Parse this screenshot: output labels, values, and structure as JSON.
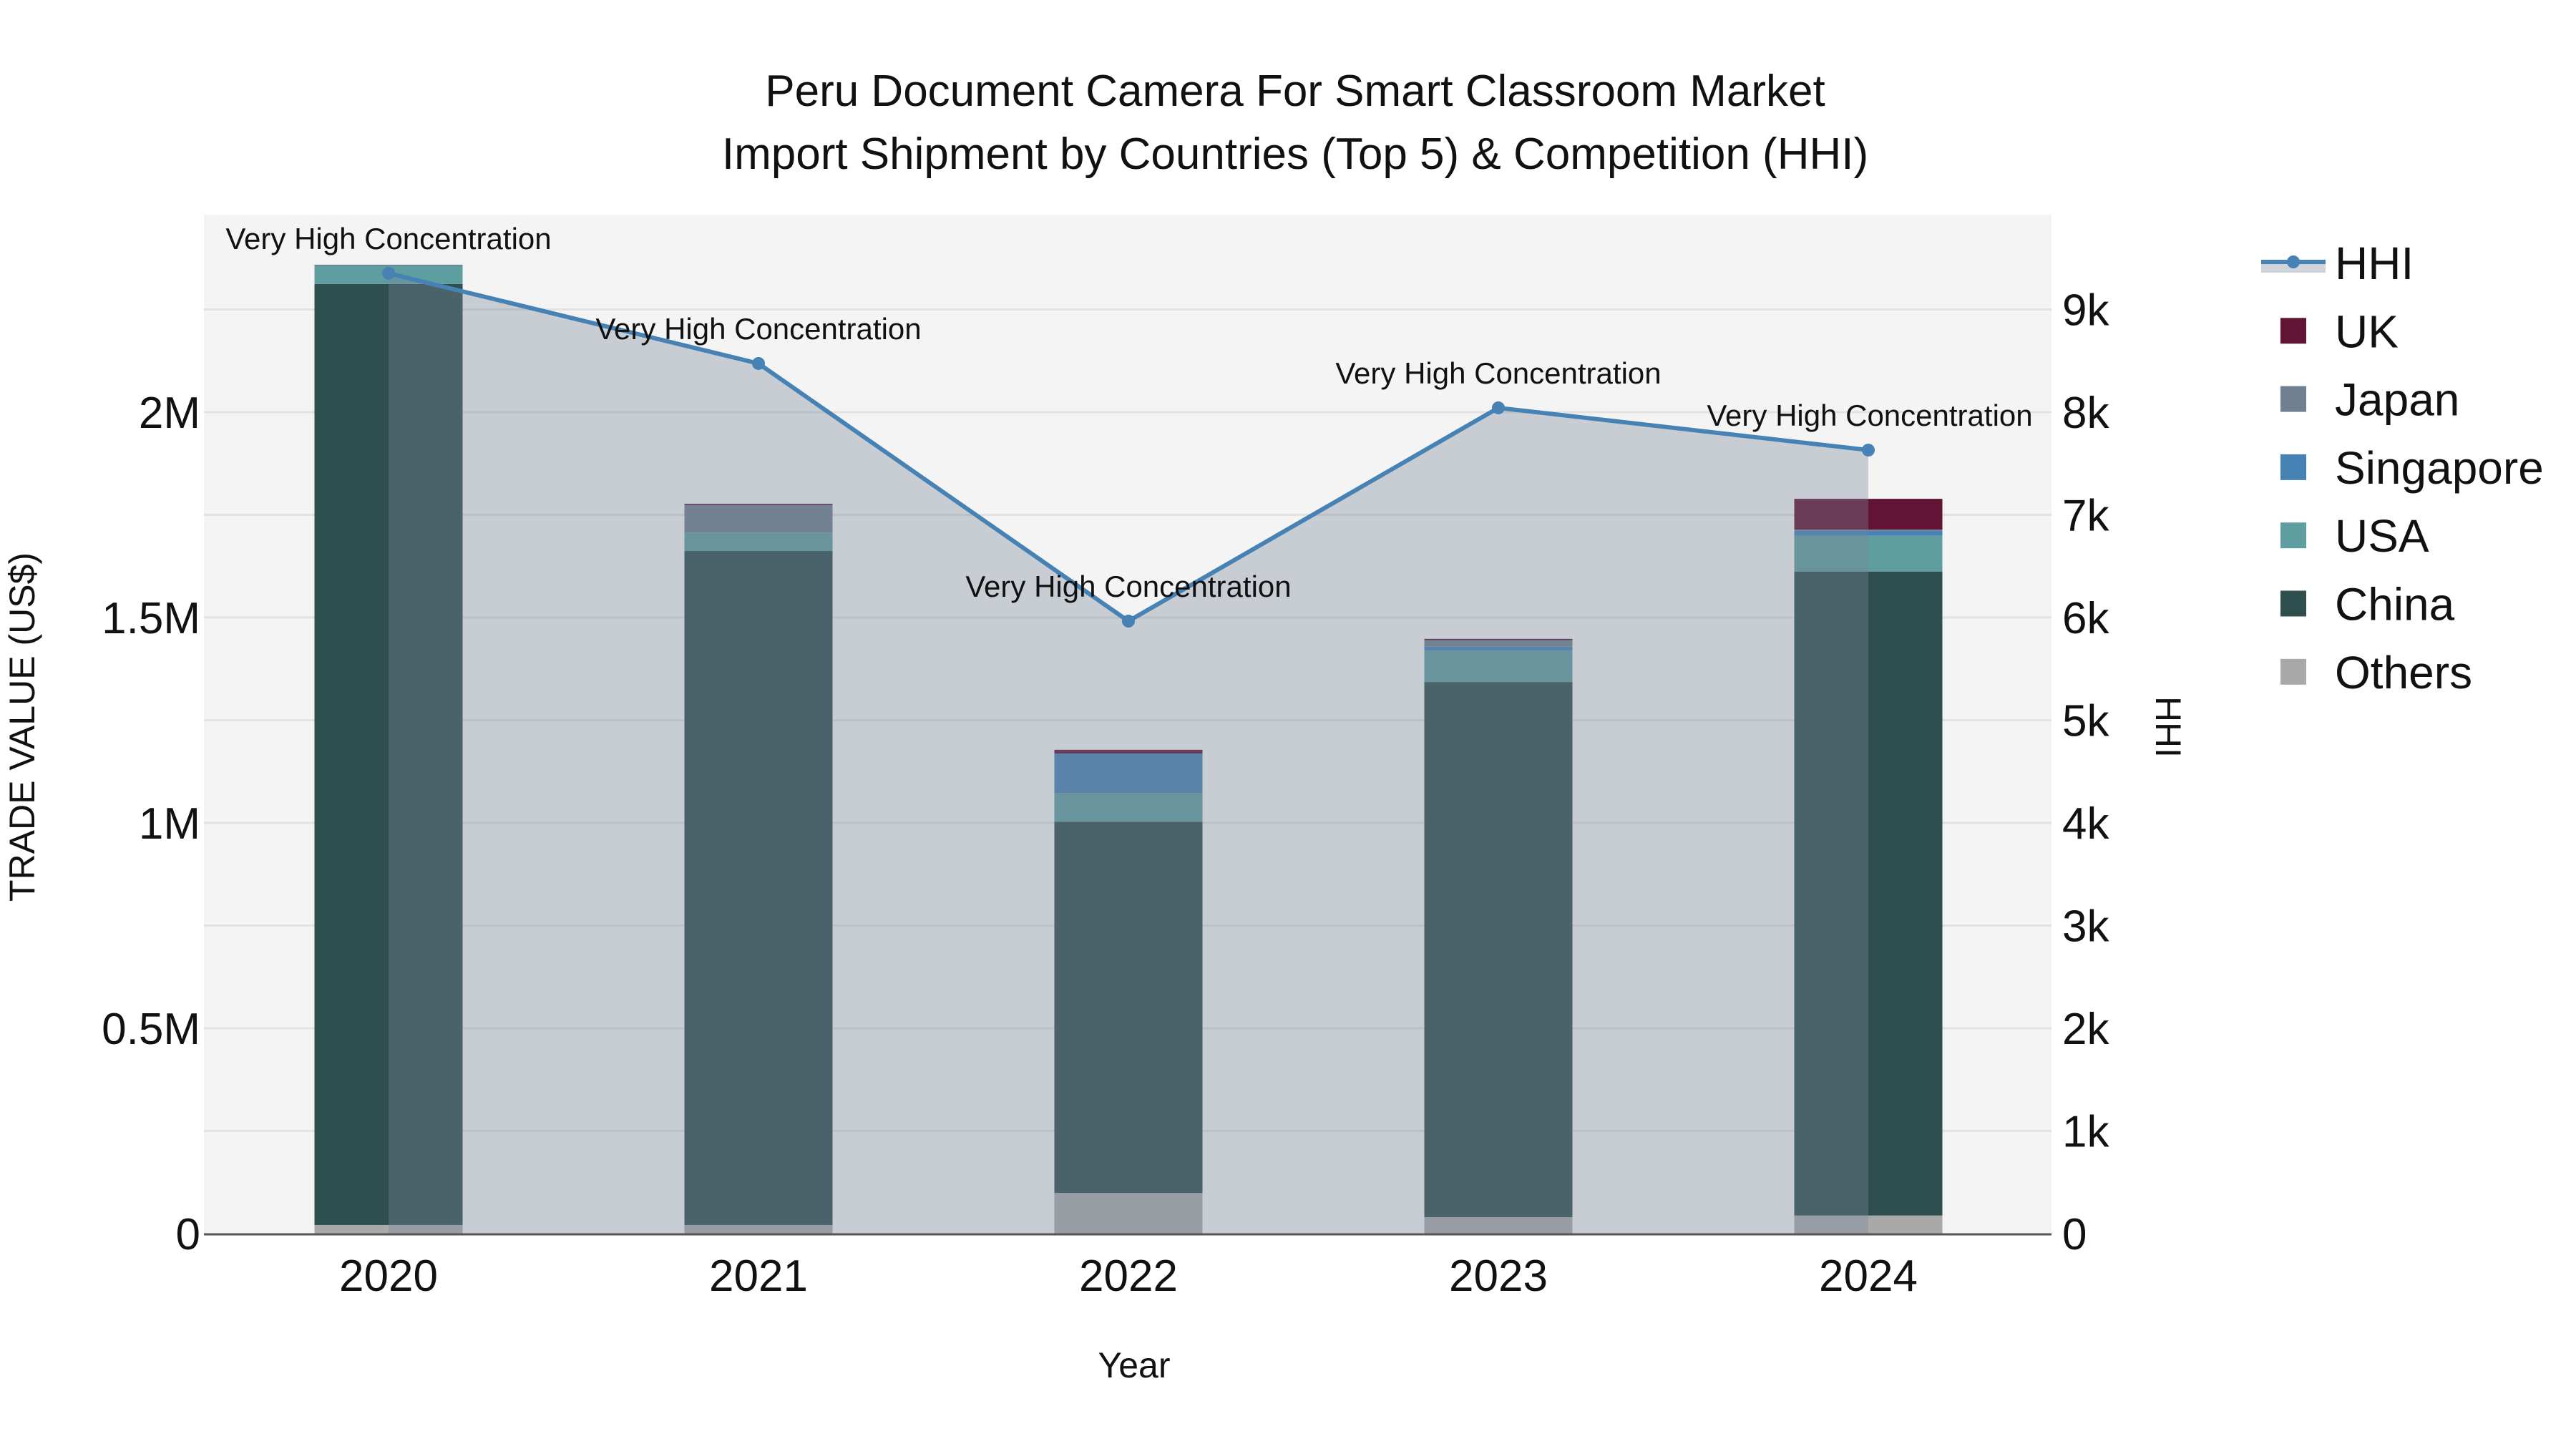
{
  "chart_data": {
    "type": "bar",
    "subtype": "stacked bar + line (secondary axis)",
    "title": "Peru Document Camera For Smart Classroom Market",
    "subtitle": "Import Shipment by Countries (Top 5) & Competition (HHI)",
    "xlabel": "Year",
    "ylabel": "TRADE VALUE (US$)",
    "y2label": "HHI",
    "categories": [
      "2020",
      "2021",
      "2022",
      "2023",
      "2024"
    ],
    "ylim": [
      0,
      2480000
    ],
    "y2lim": [
      0,
      9900
    ],
    "yticks": [
      {
        "value": 0,
        "label": "0"
      },
      {
        "value": 500000,
        "label": "0.5M"
      },
      {
        "value": 1000000,
        "label": "1M"
      },
      {
        "value": 1500000,
        "label": "1.5M"
      },
      {
        "value": 2000000,
        "label": "2M"
      }
    ],
    "y2ticks": [
      {
        "value": 0,
        "label": "0"
      },
      {
        "value": 1000,
        "label": "1k"
      },
      {
        "value": 2000,
        "label": "2k"
      },
      {
        "value": 3000,
        "label": "3k"
      },
      {
        "value": 4000,
        "label": "4k"
      },
      {
        "value": 5000,
        "label": "5k"
      },
      {
        "value": 6000,
        "label": "6k"
      },
      {
        "value": 7000,
        "label": "7k"
      },
      {
        "value": 8000,
        "label": "8k"
      },
      {
        "value": 9000,
        "label": "9k"
      }
    ],
    "grid": true,
    "legend_position": "right",
    "series": [
      {
        "name": "Others",
        "kind": "bar",
        "color": "#A9A9A9",
        "values": [
          21000,
          21000,
          99000,
          40000,
          44000
        ]
      },
      {
        "name": "China",
        "kind": "bar",
        "color": "#2F4F4F",
        "values": [
          2291000,
          1641000,
          904000,
          1303000,
          1568000
        ]
      },
      {
        "name": "USA",
        "kind": "bar",
        "color": "#5F9EA0",
        "values": [
          45000,
          45000,
          70000,
          77000,
          87000
        ]
      },
      {
        "name": "Singapore",
        "kind": "bar",
        "color": "#4682B4",
        "values": [
          0,
          0,
          96000,
          9000,
          12000
        ]
      },
      {
        "name": "Japan",
        "kind": "bar",
        "color": "#708090",
        "values": [
          2000,
          68000,
          0,
          16000,
          3000
        ]
      },
      {
        "name": "UK",
        "kind": "bar",
        "color": "#611434",
        "values": [
          0,
          2000,
          9000,
          3000,
          75000
        ]
      },
      {
        "name": "HHI",
        "kind": "line",
        "axis": "y2",
        "color": "#4682B4",
        "fill": "rgba(122,133,153,0.36)",
        "values": [
          9352,
          8474,
          5965,
          8042,
          7631
        ]
      }
    ],
    "annotations": [
      {
        "x": "2020",
        "text": "Very High Concentration"
      },
      {
        "x": "2021",
        "text": "Very High Concentration"
      },
      {
        "x": "2022",
        "text": "Very High Concentration"
      },
      {
        "x": "2023",
        "text": "Very High Concentration"
      },
      {
        "x": "2024",
        "text": "Very High Concentration"
      }
    ],
    "legend": [
      "HHI",
      "UK",
      "Japan",
      "Singapore",
      "USA",
      "China",
      "Others"
    ]
  },
  "colors": {
    "plot_bg": "#F4F4F4",
    "grid": "#E2E2E2",
    "axis_line": "#555555",
    "hhi_line": "#4682B4"
  }
}
